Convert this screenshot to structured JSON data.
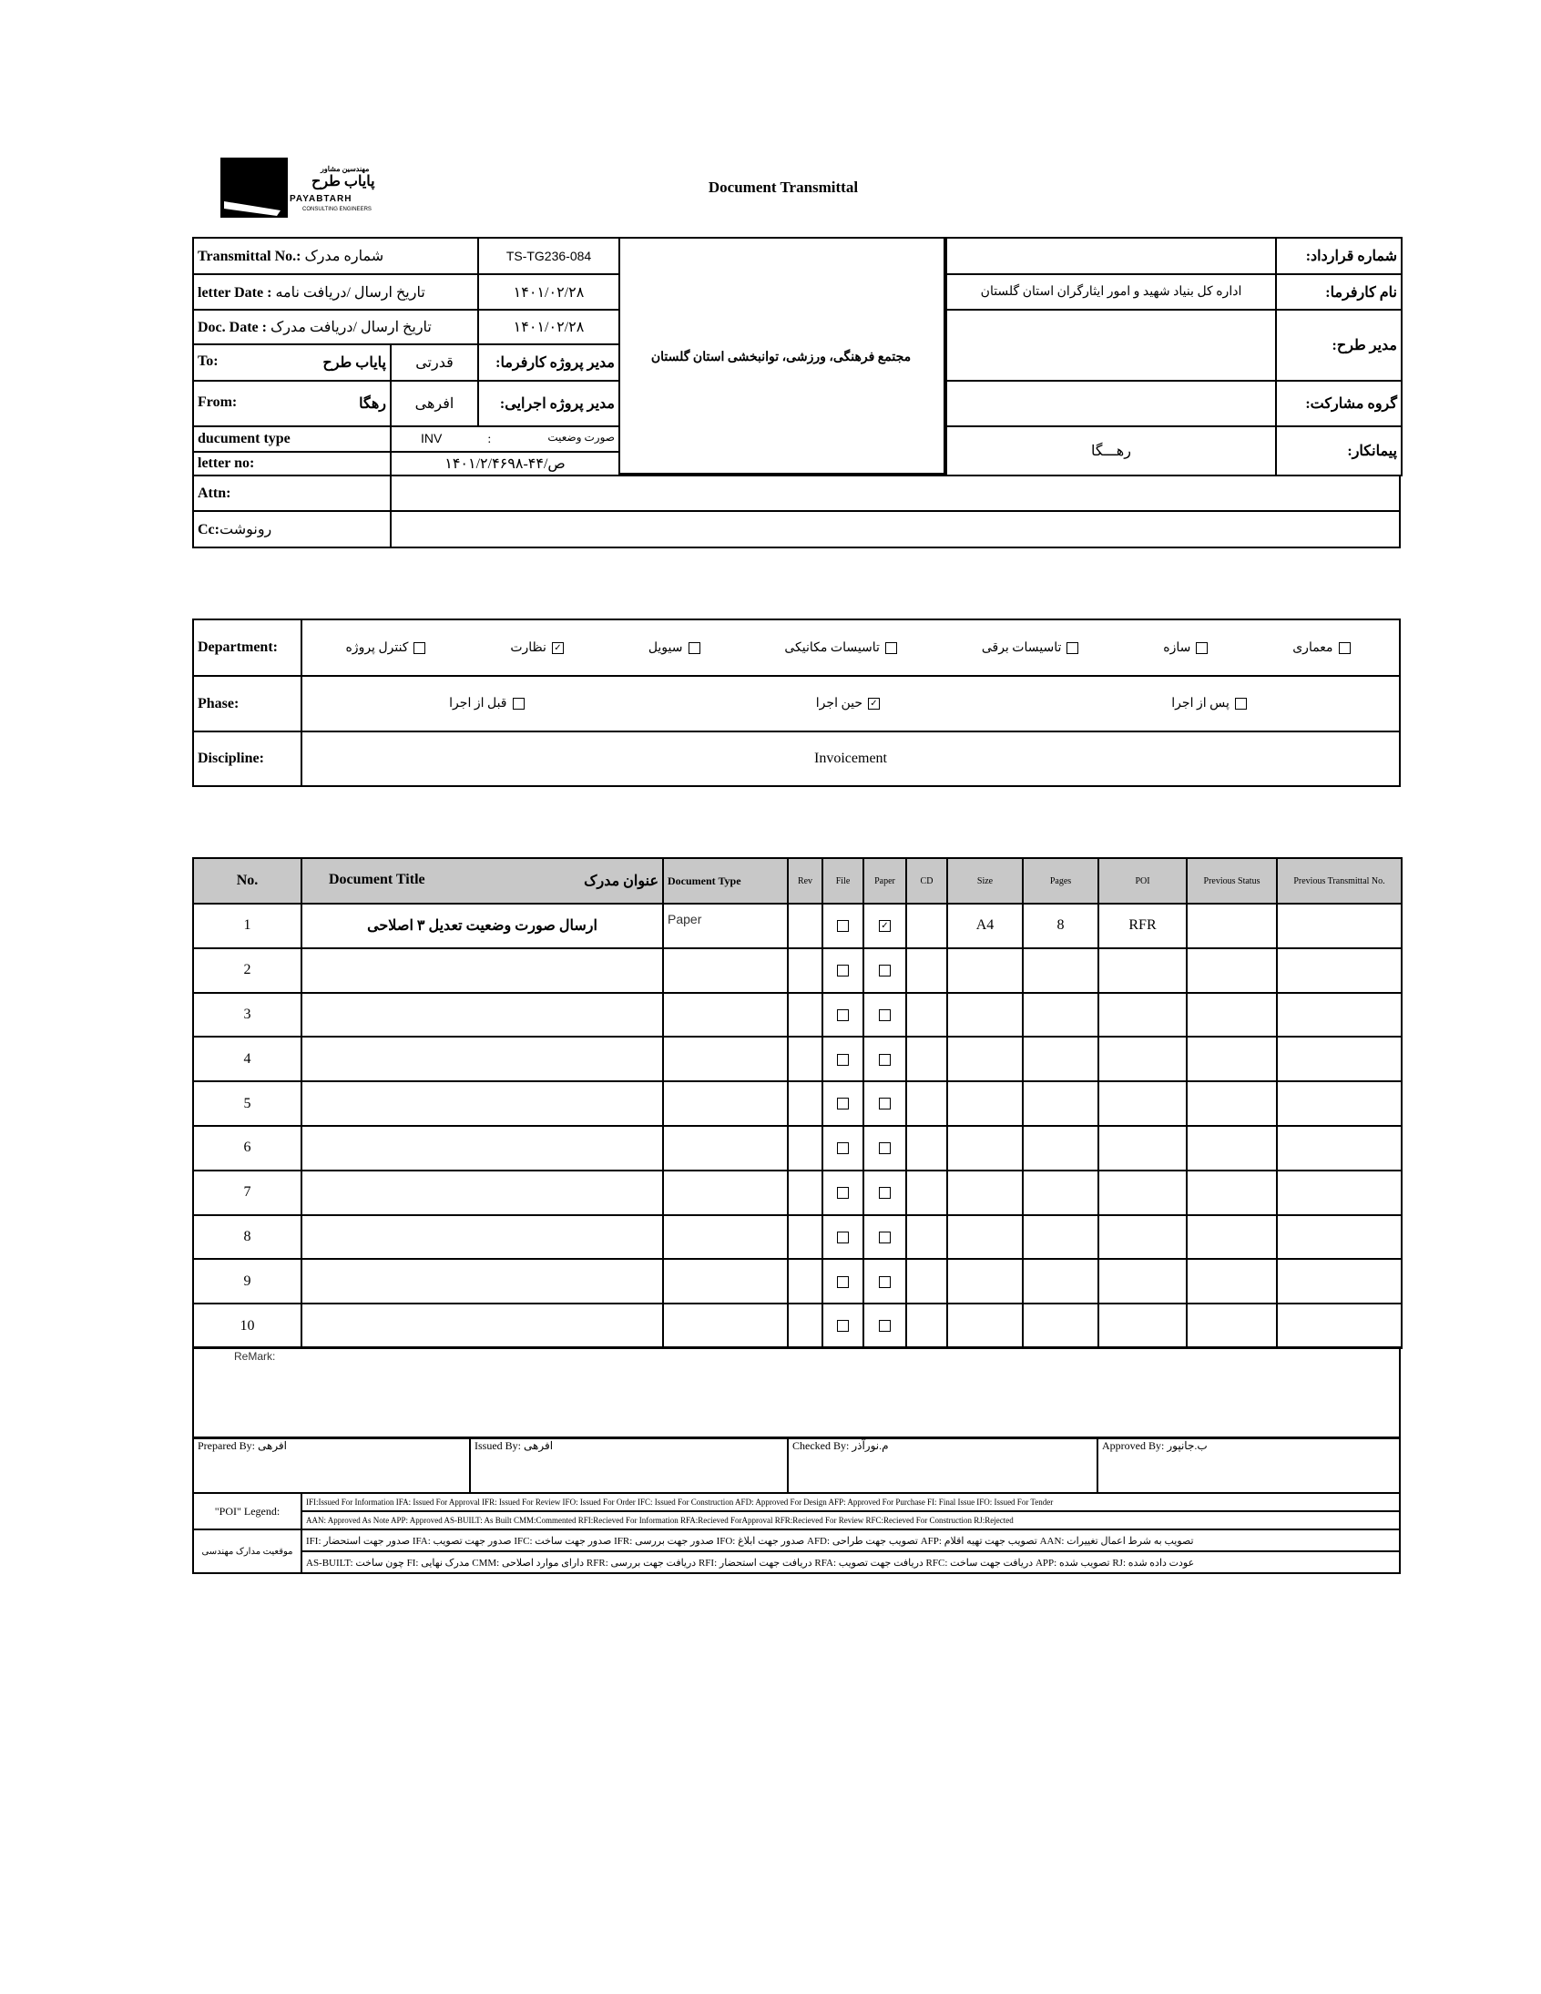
{
  "header": {
    "title": "Document Transmittal",
    "logo": {
      "fa_small": "مهندسین مشاور",
      "fa_name": "پایاب طرح",
      "en_name": "PAYABTARH",
      "en_sub": "CONSULTING ENGINEERS"
    }
  },
  "info": {
    "transmittal_label": "Transmittal No.:",
    "transmittal_label_fa": "شماره مدرک",
    "transmittal_no": "TS-TG236-084",
    "letter_date_label": "letter Date :",
    "letter_date_label_fa": "تاریخ ارسال /دریافت نامه",
    "letter_date": "۱۴۰۱/۰۲/۲۸",
    "doc_date_label": "Doc. Date :",
    "doc_date_label_fa": "تاریخ ارسال /دریافت مدرک",
    "doc_date": "۱۴۰۱/۰۲/۲۸",
    "to_label": "To:",
    "to_value": "پایاب طرح",
    "to_person": "قدرتی",
    "client_pm_label": "مدیر پروژه کارفرما:",
    "from_label": "From:",
    "from_value": "رهگا",
    "from_person": "افرهی",
    "exec_pm_label": "مدیر پروژه اجرایی:",
    "doctype_label": "ducument type",
    "doctype_value": "INV",
    "doctype_colon": ":",
    "doctype_fa": "صورت وضعیت",
    "letter_no_label": "letter no:",
    "letter_no": "۱۴۰۱/ص/۴۴-۲/۴۶۹۸",
    "attn_label": "Attn:",
    "cc_label": "Cc:",
    "cc_label_fa": "رونوشت",
    "project": "مجتمع فرهنگی، ورزشی، توانبخشی استان گلستان",
    "contract_label": "شماره قرارداد:",
    "contract_value": "",
    "client_label": "نام کارفرما:",
    "client_value": "اداره کل بنیاد شهید و امور ایثارگران استان گلستان",
    "pm_label": "مدیر طرح:",
    "pm_value": "",
    "partner_label": "گروه مشارکت:",
    "partner_value": "",
    "contractor_label": "پیمانکار:",
    "contractor_value": "رهـــگا"
  },
  "department": {
    "label": "Department:",
    "items": [
      {
        "label": "معماری",
        "checked": false
      },
      {
        "label": "سازه",
        "checked": false
      },
      {
        "label": "تاسیسات برقی",
        "checked": false
      },
      {
        "label": "تاسیسات مکانیکی",
        "checked": false
      },
      {
        "label": "سیویل",
        "checked": false
      },
      {
        "label": "نظارت",
        "checked": true
      },
      {
        "label": "کنترل پروژه",
        "checked": false
      }
    ]
  },
  "phase": {
    "label": "Phase:",
    "items": [
      {
        "label": "پس از اجرا",
        "checked": false
      },
      {
        "label": "حین اجرا",
        "checked": true
      },
      {
        "label": "قبل از اجرا",
        "checked": false
      }
    ]
  },
  "discipline": {
    "label": "Discipline:",
    "value": "Invoicement"
  },
  "documents": {
    "columns": {
      "no": "No.",
      "title": "Document Title",
      "title_fa": "عنوان مدرک",
      "type": "Document Type",
      "rev": "Rev",
      "file": "File",
      "paper": "Paper",
      "cd": "CD",
      "size": "Size",
      "pages": "Pages",
      "poi": "POI",
      "prev_status": "Previous Status",
      "prev_transmittal": "Previous Transmittal No."
    },
    "rows": [
      {
        "no": "1",
        "title": "ارسال صورت وضعیت تعدیل ۳ اصلاحی",
        "type": "Paper",
        "rev": "",
        "file": false,
        "paper": true,
        "cd": "",
        "size": "A4",
        "pages": "8",
        "poi": "RFR",
        "prev_status": "",
        "prev_transmittal": ""
      },
      {
        "no": "2",
        "file": false,
        "paper": false
      },
      {
        "no": "3",
        "file": false,
        "paper": false
      },
      {
        "no": "4",
        "file": false,
        "paper": false
      },
      {
        "no": "5",
        "file": false,
        "paper": false
      },
      {
        "no": "6",
        "file": false,
        "paper": false
      },
      {
        "no": "7",
        "file": false,
        "paper": false
      },
      {
        "no": "8",
        "file": false,
        "paper": false
      },
      {
        "no": "9",
        "file": false,
        "paper": false
      },
      {
        "no": "10",
        "file": false,
        "paper": false
      }
    ]
  },
  "remark_label": "ReMark:",
  "signatures": {
    "prepared": "Prepared By: افرهی",
    "issued": "Issued By: افرهی",
    "checked": "Checked By: م.نورآذر",
    "approved": "Approved By: ب.جانپور"
  },
  "legend": {
    "poi_label": "\"POI\" Legend:",
    "poi_line1": "IFI:Issued For Information IFA: Issued For Approval IFR: Issued For Review  IFO: Issued For Order IFC: Issued For Construction AFD: Approved For Design AFP: Approved For Purchase  FI: Final Issue  IFO: Issued For Tender",
    "poi_line2": "AAN: Approved As Note  APP: Approved  AS-BUILT: As Built CMM:Commented  RFI:Recieved For Information  RFA:Recieved ForApproval  RFR:Recieved For Review  RFC:Recieved For Construction  RJ:Rejected",
    "fa_label": "موقعیت مدارک مهندسی",
    "fa_line1": "IFI: صدور جهت استحضار    IFA: صدور جهت تصویب    IFC: صدور جهت ساخت    IFR: صدور جهت بررسی    IFO: صدور جهت ابلاغ    AFD: تصویب جهت طراحی    AFP: تصویب جهت تهیه اقلام    AAN: تصویب به شرط اعمال تغییرات",
    "fa_line2": "AS-BUILT: چون ساخت    FI: مدرک نهایی    CMM: دارای موارد اصلاحی    RFR: دریافت جهت بررسی    RFI: دریافت جهت استحضار    RFA: دریافت جهت تصویب    RFC: دریافت جهت ساخت    APP: تصویب شده    RJ: عودت داده شده"
  }
}
